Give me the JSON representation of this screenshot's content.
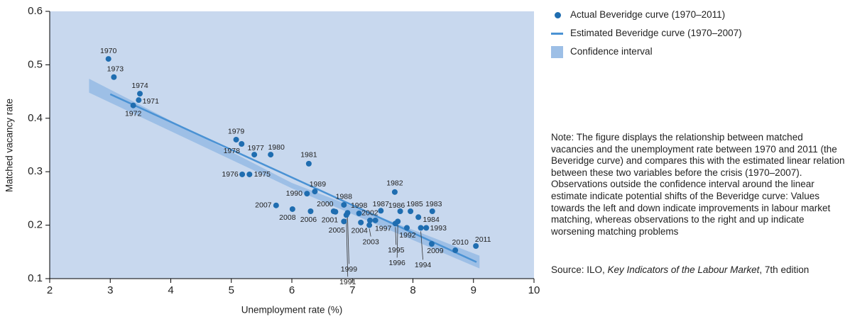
{
  "chart_data": {
    "type": "scatter",
    "xlabel": "Unemployment rate (%)",
    "ylabel": "Matched vacancy rate",
    "xlim": [
      2,
      10
    ],
    "xticks": [
      2,
      3,
      4,
      5,
      6,
      7,
      8,
      9,
      10
    ],
    "ylim": [
      0.1,
      0.6
    ],
    "yticks": [
      0.1,
      0.2,
      0.3,
      0.4,
      0.5,
      0.6
    ],
    "grid": false,
    "background": "#c8d8ee",
    "series": [
      {
        "name": "Actual Beveridge curve (1970–2011)",
        "type": "scatter",
        "color": "#1f6db0",
        "labels": [
          "1970",
          "1973",
          "1974",
          "1971",
          "1972",
          "1979",
          "1978",
          "1977",
          "1980",
          "1981",
          "1976",
          "1975",
          "1989",
          "1990",
          "1982",
          "1988",
          "2007",
          "2008",
          "2006",
          "2000",
          "2001",
          "1999",
          "1991",
          "2005",
          "1998",
          "2002",
          "2004",
          "2003",
          "1997",
          "1987",
          "1986",
          "1985",
          "1983",
          "1984",
          "1995",
          "1996",
          "1992",
          "1993",
          "1994",
          "2009",
          "2010",
          "2011"
        ],
        "x": [
          2.97,
          3.06,
          3.49,
          3.47,
          3.38,
          5.08,
          5.17,
          5.38,
          5.65,
          6.28,
          5.18,
          5.3,
          6.38,
          6.25,
          7.7,
          6.86,
          5.74,
          6.01,
          6.31,
          6.69,
          6.72,
          6.92,
          6.9,
          6.86,
          7.11,
          7.29,
          7.14,
          7.28,
          7.38,
          7.47,
          7.79,
          7.96,
          8.32,
          8.09,
          7.71,
          7.75,
          7.9,
          8.22,
          8.13,
          8.31,
          8.7,
          9.04
        ],
        "values": [
          0.511,
          0.477,
          0.446,
          0.434,
          0.424,
          0.36,
          0.352,
          0.332,
          0.332,
          0.315,
          0.295,
          0.295,
          0.263,
          0.259,
          0.262,
          0.238,
          0.237,
          0.23,
          0.226,
          0.226,
          0.225,
          0.223,
          0.219,
          0.207,
          0.222,
          0.209,
          0.205,
          0.2,
          0.209,
          0.227,
          0.226,
          0.226,
          0.226,
          0.215,
          0.203,
          0.207,
          0.195,
          0.195,
          0.195,
          0.165,
          0.153,
          0.161
        ]
      },
      {
        "name": "Estimated Beveridge curve (1970–2007)",
        "type": "line",
        "color": "#4a92d4",
        "x": [
          3,
          9.05
        ],
        "values": [
          0.445,
          0.131
        ]
      },
      {
        "name": "Confidence interval",
        "type": "band",
        "color": "#9dbfe6",
        "x": [
          2.65,
          6.0,
          9.1
        ],
        "lower": [
          0.448,
          0.269,
          0.119
        ],
        "upper": [
          0.474,
          0.279,
          0.143
        ]
      }
    ],
    "note": "Note: The figure displays the relationship between matched vacancies and the unemployment rate between 1970 and 2011 (the Beveridge curve) and compares this with the estimated linear relation between these two variables before the crisis (1970–2007). Observations outside the confidence interval around the linear estimate indicate potential shifts of the Beveridge curve: Values towards the left and down indicate improvements in labour market matching, whereas observations to the right and up indicate worsening matching problems",
    "source": {
      "prefix": "Source: ILO, ",
      "title": "Key Indicators of the Labour Market",
      "suffix": ", 7th edition"
    }
  }
}
